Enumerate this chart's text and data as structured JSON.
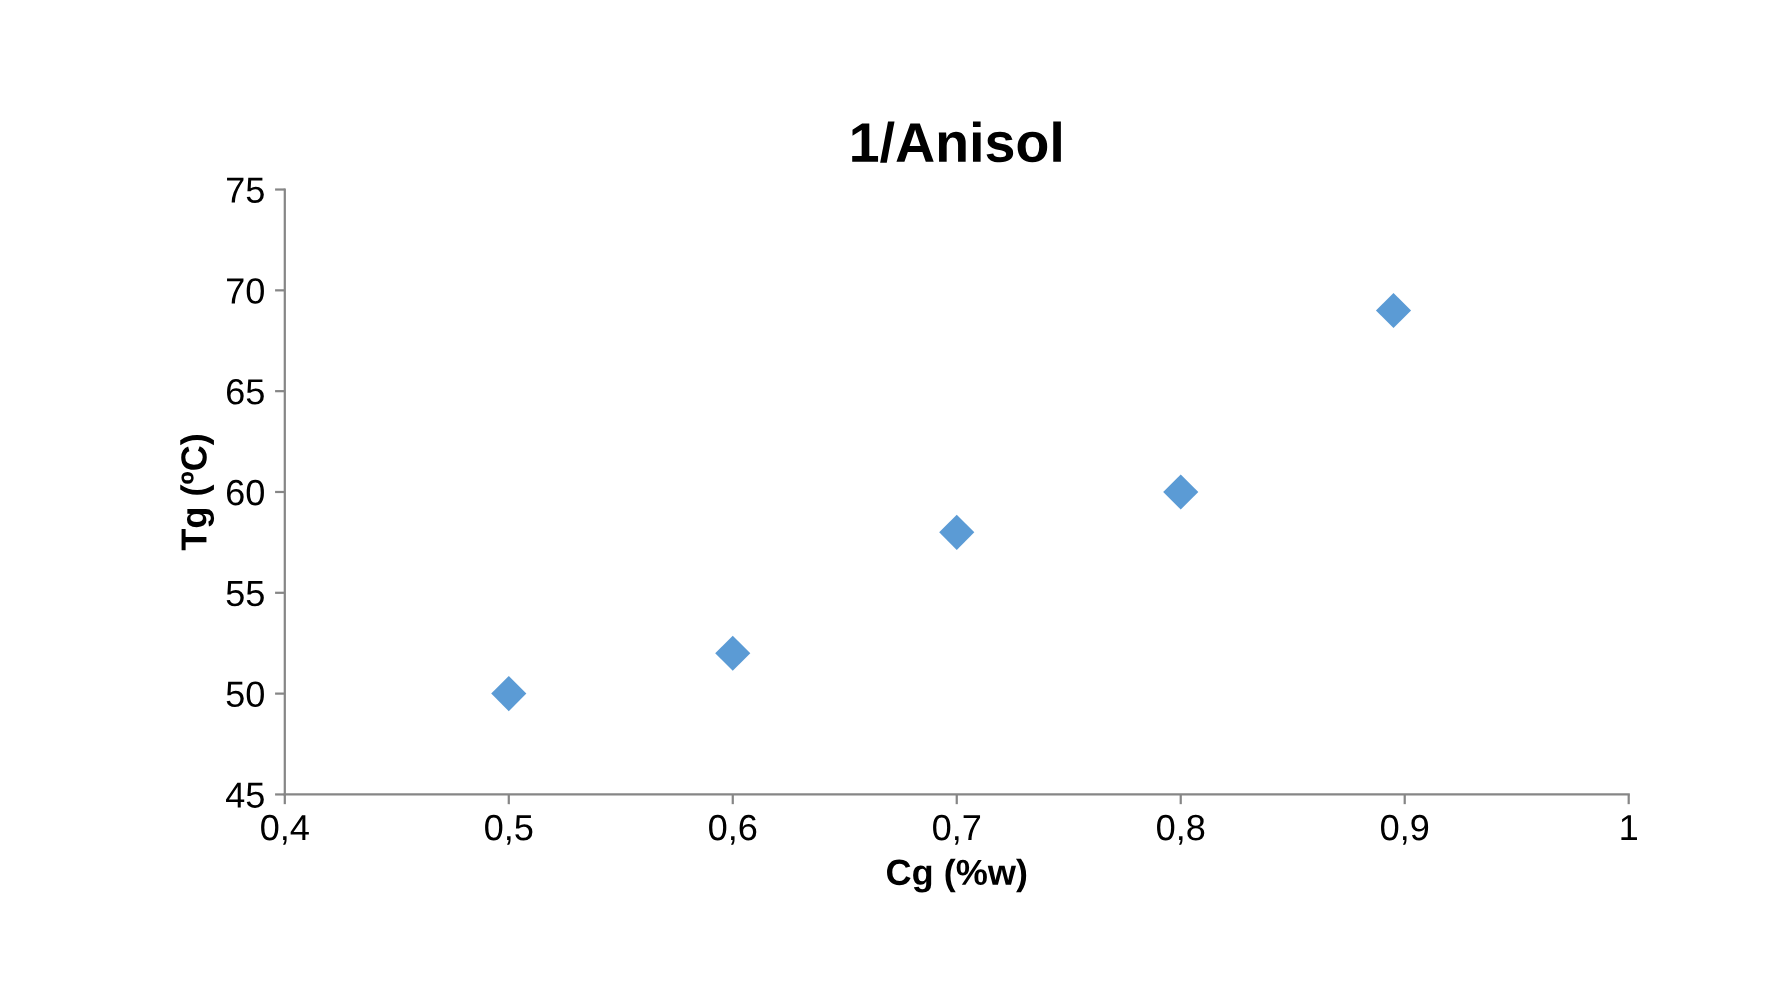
{
  "chart_data": {
    "type": "scatter",
    "title": "1/Anisol",
    "xlabel": "Cg (%w)",
    "ylabel": "Tg (ºC)",
    "x": [
      0.5,
      0.6,
      0.7,
      0.8,
      0.895
    ],
    "series": [
      {
        "color": "#5b9bd5",
        "values": [
          50,
          52,
          58,
          60,
          69
        ]
      }
    ],
    "xlim": [
      0.4,
      1
    ],
    "xticks": [
      {
        "value": 0.4,
        "label": "0,4"
      },
      {
        "value": 0.5,
        "label": "0,5"
      },
      {
        "value": 0.6,
        "label": "0,6"
      },
      {
        "value": 0.7,
        "label": "0,7"
      },
      {
        "value": 0.8,
        "label": "0,8"
      },
      {
        "value": 0.9,
        "label": "0,9"
      },
      1
    ],
    "ylim": [
      45,
      75
    ],
    "yticks": [
      45,
      50,
      55,
      60,
      65,
      70,
      75
    ],
    "marker": "diamond",
    "grid": false,
    "legend": false
  }
}
